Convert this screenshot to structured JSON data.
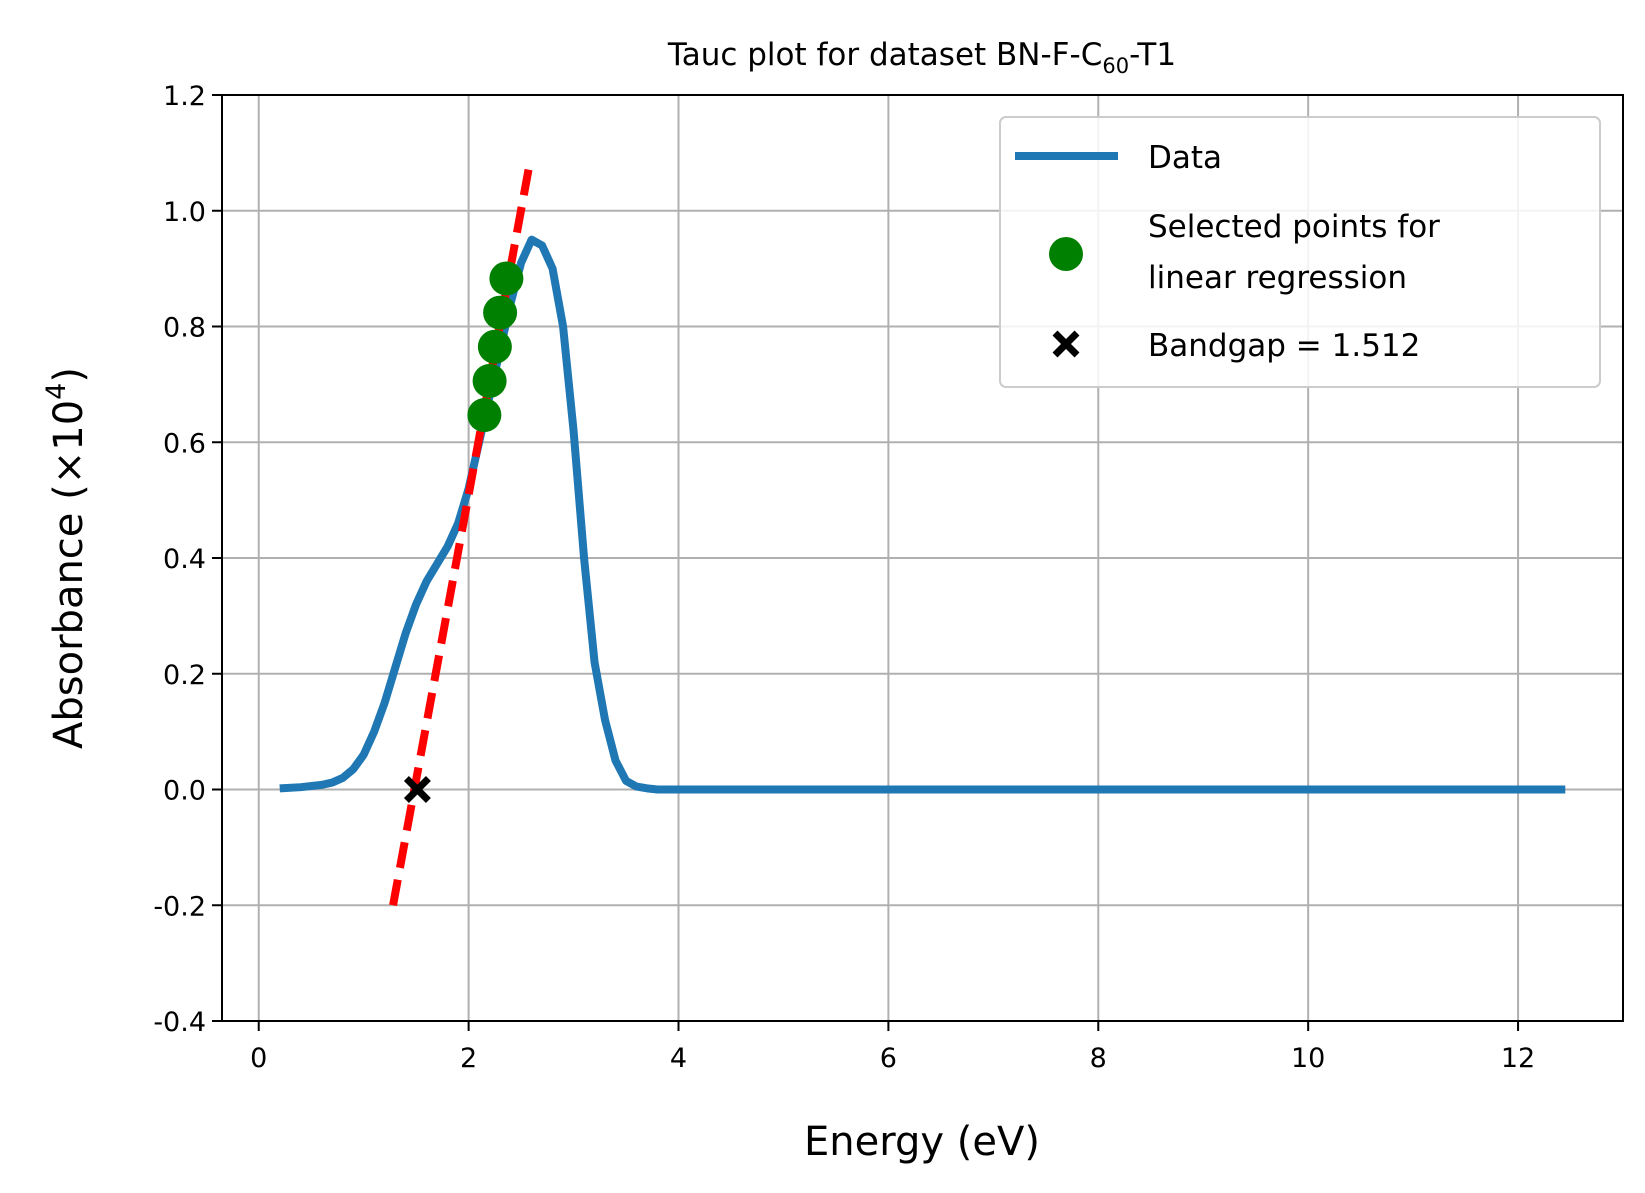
{
  "chart_data": {
    "type": "line",
    "title_parts": {
      "pre": "Tauc plot for dataset BN-F-C",
      "sub": "60",
      "post": "-T1"
    },
    "xlabel": "Energy (eV)",
    "ylabel_parts": {
      "pre": "Absorbance (×10",
      "sup": "4",
      "post": ")"
    },
    "xlim": [
      -0.35,
      13.0
    ],
    "ylim": [
      -0.4,
      1.2
    ],
    "x_ticks": [
      0,
      2,
      4,
      6,
      8,
      10,
      12
    ],
    "x_tick_labels": [
      "0",
      "2",
      "4",
      "6",
      "8",
      "10",
      "12"
    ],
    "y_ticks": [
      -0.4,
      -0.2,
      0.0,
      0.2,
      0.4,
      0.6,
      0.8,
      1.0,
      1.2
    ],
    "y_tick_labels": [
      "-0.4",
      "-0.2",
      "0.0",
      "0.2",
      "0.4",
      "0.6",
      "0.8",
      "1.0",
      "1.2"
    ],
    "grid": true,
    "legend_position": "top-right",
    "series": [
      {
        "name": "Data",
        "kind": "line",
        "color": "#1f77b4",
        "x": [
          0.2,
          0.4,
          0.6,
          0.7,
          0.8,
          0.9,
          1.0,
          1.1,
          1.2,
          1.3,
          1.4,
          1.5,
          1.6,
          1.7,
          1.8,
          1.9,
          2.0,
          2.1,
          2.2,
          2.3,
          2.4,
          2.5,
          2.6,
          2.7,
          2.8,
          2.9,
          3.0,
          3.1,
          3.2,
          3.3,
          3.4,
          3.5,
          3.6,
          3.7,
          3.8,
          4.0,
          5.0,
          6.0,
          8.0,
          10.0,
          12.0,
          12.45
        ],
        "y": [
          0.002,
          0.004,
          0.008,
          0.012,
          0.02,
          0.035,
          0.06,
          0.1,
          0.15,
          0.21,
          0.27,
          0.32,
          0.36,
          0.39,
          0.42,
          0.46,
          0.52,
          0.6,
          0.68,
          0.76,
          0.84,
          0.91,
          0.95,
          0.94,
          0.9,
          0.8,
          0.62,
          0.4,
          0.22,
          0.12,
          0.05,
          0.015,
          0.005,
          0.002,
          0.0,
          0.0,
          0.0,
          0.0,
          0.0,
          0.0,
          0.0,
          0.0
        ]
      },
      {
        "name": "Selected points for linear regression",
        "name_lines": [
          "Selected points for",
          "linear regression"
        ],
        "kind": "scatter",
        "color": "#008000",
        "x": [
          2.15,
          2.2,
          2.25,
          2.3,
          2.36
        ],
        "y": [
          0.647,
          0.706,
          0.765,
          0.824,
          0.883
        ]
      },
      {
        "name": "Bandgap = 1.512",
        "kind": "marker-x",
        "color": "#000000",
        "x": [
          1.512
        ],
        "y": [
          0.0
        ]
      }
    ],
    "fit_line": {
      "color": "#ff0000",
      "x": [
        1.28,
        2.59
      ],
      "y": [
        -0.2,
        1.09
      ]
    }
  }
}
